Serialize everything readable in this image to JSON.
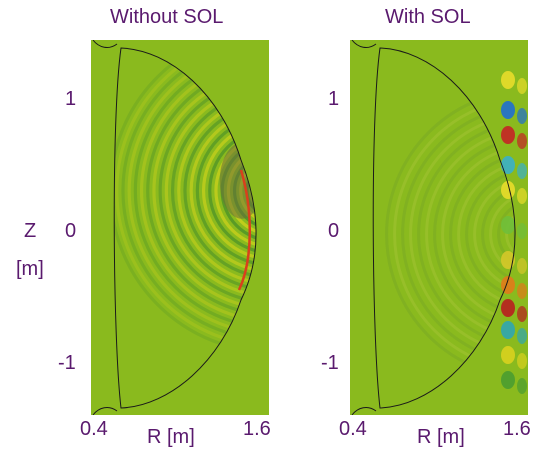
{
  "chart_data": [
    {
      "type": "heatmap",
      "title": "Without SOL",
      "xlabel": "R [m]",
      "ylabel": "Z\n[m]",
      "xticks": [
        "0.4",
        "1.6"
      ],
      "yticks": [
        "1",
        "0",
        "-1"
      ],
      "xlim": [
        0.4,
        1.6
      ],
      "ylim": [
        -1.35,
        1.45
      ],
      "background_color": "#8aba1e",
      "field_region": "inside-separatrix",
      "wave_focus": {
        "R": 1.45,
        "Z": 0.25
      }
    },
    {
      "type": "heatmap",
      "title": "With SOL",
      "xlabel": "R [m]",
      "ylabel": "",
      "xticks": [
        "0.4",
        "1.6"
      ],
      "yticks": [
        "1",
        "0",
        "-1"
      ],
      "xlim": [
        0.4,
        1.6
      ],
      "ylim": [
        -1.35,
        1.45
      ],
      "background_color": "#8aba1e",
      "field_region": "scrape-off-layer",
      "wave_focus": {
        "R": 1.55,
        "Z": 0.0
      }
    }
  ]
}
